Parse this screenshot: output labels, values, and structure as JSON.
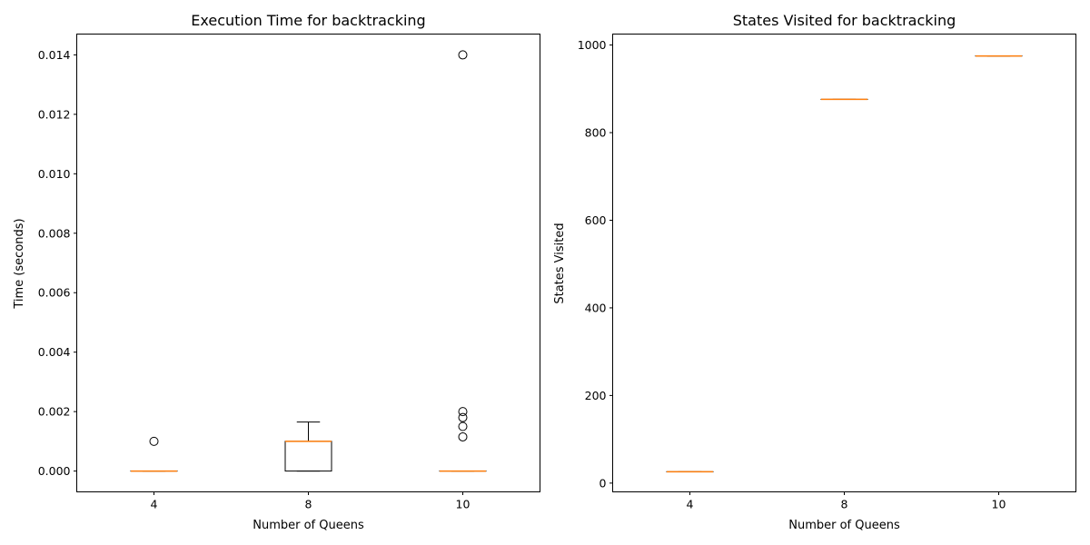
{
  "chart_data": [
    {
      "type": "box",
      "title": "Execution Time for backtracking",
      "xlabel": "Number of Queens",
      "ylabel": "Time (seconds)",
      "categories": [
        "4",
        "8",
        "10"
      ],
      "ylim": [
        -0.0007,
        0.0147
      ],
      "yticks": [
        0.0,
        0.002,
        0.004,
        0.006,
        0.008,
        0.01,
        0.012,
        0.014
      ],
      "ytick_labels": [
        "0.000",
        "0.002",
        "0.004",
        "0.006",
        "0.008",
        "0.010",
        "0.012",
        "0.014"
      ],
      "boxes": [
        {
          "category": "4",
          "whisker_low": 0.0,
          "q1": 0.0,
          "median": 0.0,
          "q3": 0.0,
          "whisker_high": 0.0,
          "outliers": [
            0.001
          ]
        },
        {
          "category": "8",
          "whisker_low": 0.0,
          "q1": 0.0,
          "median": 0.001,
          "q3": 0.001,
          "whisker_high": 0.00165,
          "outliers": []
        },
        {
          "category": "10",
          "whisker_low": 0.0,
          "q1": 0.0,
          "median": 0.0,
          "q3": 0.0,
          "whisker_high": 0.0,
          "outliers": [
            0.00115,
            0.0015,
            0.0018,
            0.002,
            0.014
          ]
        }
      ],
      "colors": {
        "box": "#000000",
        "median": "#ff7f0e",
        "outlier": "#000000"
      }
    },
    {
      "type": "box",
      "title": "States Visited for backtracking",
      "xlabel": "Number of Queens",
      "ylabel": "States Visited",
      "categories": [
        "4",
        "8",
        "10"
      ],
      "ylim": [
        -20,
        1025
      ],
      "yticks": [
        0,
        200,
        400,
        600,
        800,
        1000
      ],
      "ytick_labels": [
        "0",
        "200",
        "400",
        "600",
        "800",
        "1000"
      ],
      "boxes": [
        {
          "category": "4",
          "whisker_low": 26,
          "q1": 26,
          "median": 26,
          "q3": 26,
          "whisker_high": 26,
          "outliers": []
        },
        {
          "category": "8",
          "whisker_low": 876,
          "q1": 876,
          "median": 876,
          "q3": 876,
          "whisker_high": 876,
          "outliers": []
        },
        {
          "category": "10",
          "whisker_low": 975,
          "q1": 975,
          "median": 975,
          "q3": 975,
          "whisker_high": 975,
          "outliers": []
        }
      ],
      "colors": {
        "box": "#000000",
        "median": "#ff7f0e",
        "outlier": "#000000"
      }
    }
  ]
}
